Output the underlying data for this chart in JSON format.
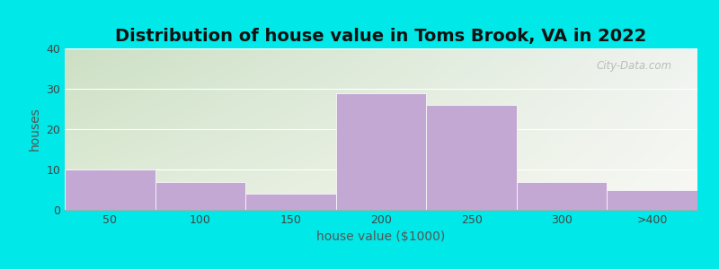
{
  "title": "Distribution of house value in Toms Brook, VA in 2022",
  "xlabel": "house value ($1000)",
  "ylabel": "houses",
  "categories": [
    "50",
    "100",
    "150",
    "200",
    "250",
    "300",
    ">400"
  ],
  "values": [
    10,
    7,
    4,
    29,
    26,
    7,
    5
  ],
  "bar_color": "#c4a8d4",
  "ylim": [
    0,
    40
  ],
  "yticks": [
    0,
    10,
    20,
    30,
    40
  ],
  "bg_color": "#00e8e8",
  "grid_color": "#ffffff",
  "title_fontsize": 14,
  "label_fontsize": 10,
  "tick_fontsize": 9,
  "watermark": "City-Data.com",
  "grad_left": "#d8e8d0",
  "grad_right": "#f0f0f0"
}
